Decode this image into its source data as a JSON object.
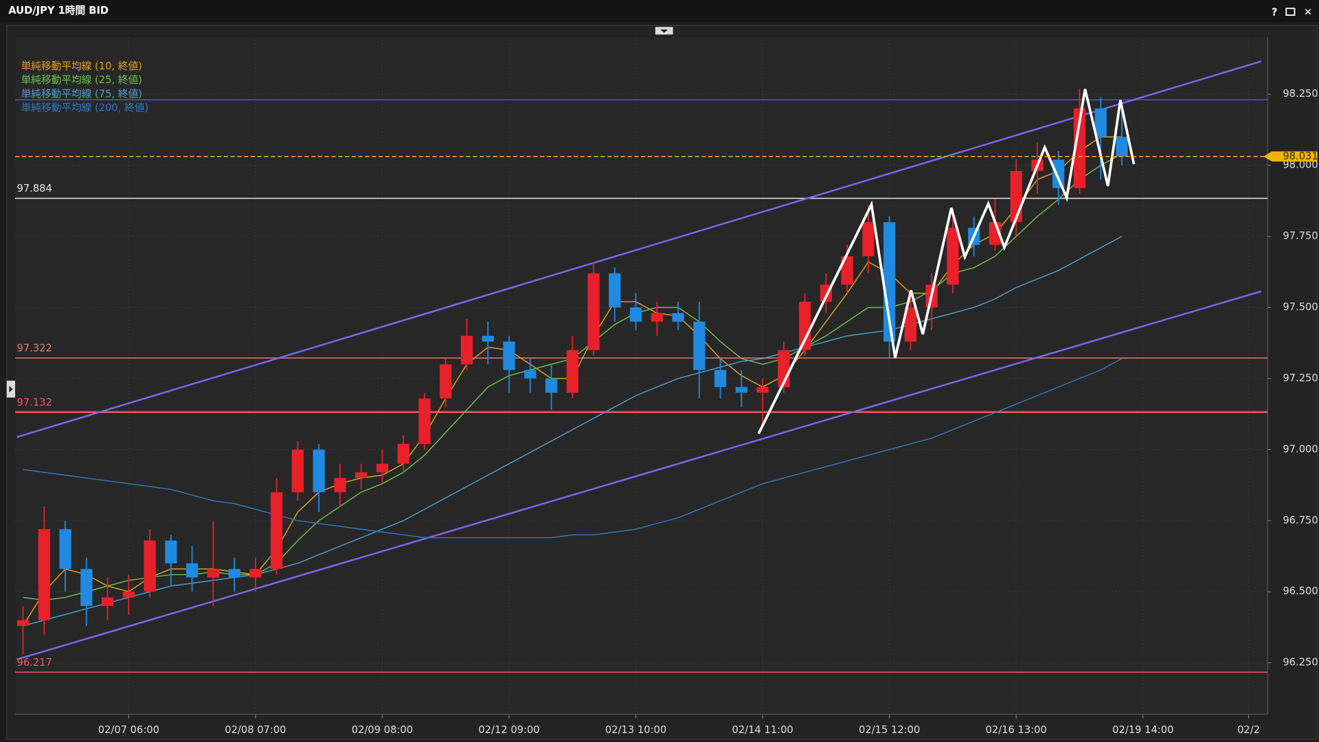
{
  "window": {
    "title": "AUD/JPY 1時間 BID",
    "buttons": [
      "?",
      "✕"
    ]
  },
  "chart_data": {
    "type": "candlestick",
    "categories": [
      null,
      null,
      null,
      null,
      null,
      "02/07 06:00",
      null,
      null,
      null,
      null,
      null,
      "02/08 07:00",
      null,
      null,
      null,
      null,
      null,
      "02/09 08:00",
      null,
      null,
      null,
      null,
      null,
      "02/12 09:00",
      null,
      null,
      null,
      null,
      null,
      "02/13 10:00",
      null,
      null,
      null,
      null,
      null,
      "02/14 11:00",
      null,
      null,
      null,
      null,
      null,
      "02/15 12:00",
      null,
      null,
      null,
      null,
      null,
      "02/16 13:00",
      null,
      null,
      null,
      null,
      null,
      "02/19 14:00",
      null,
      null,
      null,
      null,
      "02/2"
    ],
    "open": [
      96.38,
      96.4,
      96.72,
      96.58,
      96.45,
      96.48,
      96.5,
      96.68,
      96.6,
      96.55,
      96.58,
      96.55,
      96.58,
      96.85,
      97.0,
      96.85,
      96.9,
      96.92,
      96.95,
      97.02,
      97.18,
      97.3,
      97.4,
      97.38,
      97.28,
      97.25,
      97.2,
      97.35,
      97.62,
      97.5,
      97.45,
      97.48,
      97.45,
      97.28,
      97.22,
      97.2,
      97.22,
      97.35,
      97.52,
      97.58,
      97.68,
      97.8,
      97.38,
      97.5,
      97.58,
      97.78,
      97.72,
      97.8,
      97.98,
      98.02,
      97.92,
      98.2,
      98.1,
      null,
      null,
      null,
      null,
      null,
      null
    ],
    "high": [
      96.45,
      96.8,
      96.75,
      96.62,
      96.55,
      96.56,
      96.72,
      96.7,
      96.66,
      96.75,
      96.62,
      96.62,
      96.9,
      97.03,
      97.02,
      96.95,
      96.95,
      97.0,
      97.05,
      97.2,
      97.32,
      97.46,
      97.45,
      97.4,
      97.32,
      97.3,
      97.4,
      97.66,
      97.64,
      97.55,
      97.52,
      97.52,
      97.52,
      97.32,
      97.28,
      97.25,
      97.38,
      97.55,
      97.62,
      97.72,
      97.86,
      97.82,
      97.56,
      97.62,
      97.85,
      97.82,
      97.88,
      98.02,
      98.08,
      98.05,
      98.27,
      98.24,
      98.22,
      null,
      null,
      null,
      null,
      null,
      null
    ],
    "low": [
      96.28,
      96.35,
      96.5,
      96.38,
      96.4,
      96.42,
      96.48,
      96.52,
      96.5,
      96.45,
      96.5,
      96.5,
      96.56,
      96.82,
      96.78,
      96.8,
      96.86,
      96.88,
      96.92,
      97.0,
      97.15,
      97.28,
      97.3,
      97.2,
      97.2,
      97.14,
      97.18,
      97.33,
      97.45,
      97.42,
      97.4,
      97.42,
      97.18,
      97.18,
      97.15,
      97.08,
      97.2,
      97.33,
      97.48,
      97.55,
      97.62,
      97.32,
      97.35,
      97.42,
      97.55,
      97.68,
      97.7,
      97.75,
      97.9,
      97.86,
      97.9,
      97.95,
      98.0,
      null,
      null,
      null,
      null,
      null,
      null
    ],
    "close": [
      96.4,
      96.72,
      96.58,
      96.45,
      96.48,
      96.5,
      96.68,
      96.6,
      96.55,
      96.58,
      96.55,
      96.58,
      96.85,
      97.0,
      96.85,
      96.9,
      96.92,
      96.95,
      97.02,
      97.18,
      97.3,
      97.4,
      97.38,
      97.28,
      97.25,
      97.2,
      97.35,
      97.62,
      97.5,
      97.45,
      97.48,
      97.45,
      97.28,
      97.22,
      97.2,
      97.22,
      97.35,
      97.52,
      97.58,
      97.68,
      97.8,
      97.38,
      97.5,
      97.58,
      97.78,
      97.72,
      97.8,
      97.98,
      98.02,
      97.92,
      98.2,
      98.1,
      98.03,
      null,
      null,
      null,
      null,
      null,
      null
    ],
    "up_color": "#e8202a",
    "down_color": "#1f8ae0",
    "series": [
      {
        "name": "単純移動平均線 (10, 終値)",
        "color": "#e0a020",
        "values": [
          96.38,
          96.5,
          96.58,
          96.56,
          96.52,
          96.5,
          96.55,
          96.58,
          96.58,
          96.58,
          96.57,
          96.56,
          96.65,
          96.78,
          96.85,
          96.88,
          96.9,
          96.91,
          96.95,
          97.05,
          97.18,
          97.3,
          97.36,
          97.35,
          97.3,
          97.25,
          97.25,
          97.4,
          97.52,
          97.52,
          97.48,
          97.47,
          97.4,
          97.32,
          97.26,
          97.22,
          97.26,
          97.35,
          97.45,
          97.55,
          97.66,
          97.62,
          97.55,
          97.55,
          97.65,
          97.72,
          97.76,
          97.85,
          97.95,
          97.98,
          98.05,
          98.1,
          98.1,
          null,
          null,
          null,
          null,
          null,
          null
        ]
      },
      {
        "name": "単純移動平均線 (25, 終値)",
        "color": "#6cc04a",
        "values": [
          96.48,
          96.47,
          96.48,
          96.5,
          96.52,
          96.54,
          96.55,
          96.56,
          96.56,
          96.57,
          96.56,
          96.56,
          96.6,
          96.68,
          96.75,
          96.8,
          96.85,
          96.88,
          96.92,
          96.98,
          97.06,
          97.14,
          97.22,
          97.26,
          97.28,
          97.3,
          97.32,
          97.38,
          97.44,
          97.48,
          97.5,
          97.5,
          97.45,
          97.38,
          97.32,
          97.3,
          97.32,
          97.36,
          97.4,
          97.45,
          97.5,
          97.5,
          97.52,
          97.56,
          97.62,
          97.64,
          97.68,
          97.75,
          97.82,
          97.88,
          97.95,
          98.0,
          98.04,
          null,
          null,
          null,
          null,
          null,
          null
        ]
      },
      {
        "name": "単純移動平均線 (75, 終値)",
        "color": "#4a9fd0",
        "values": [
          96.38,
          96.4,
          96.42,
          96.44,
          96.46,
          96.48,
          96.5,
          96.52,
          96.53,
          96.54,
          96.55,
          96.56,
          96.58,
          96.6,
          96.63,
          96.66,
          96.69,
          96.72,
          96.75,
          96.79,
          96.83,
          96.87,
          96.91,
          96.95,
          96.99,
          97.03,
          97.07,
          97.11,
          97.15,
          97.19,
          97.22,
          97.25,
          97.27,
          97.29,
          97.31,
          97.32,
          97.34,
          97.36,
          97.38,
          97.4,
          97.41,
          97.42,
          97.44,
          97.46,
          97.48,
          97.5,
          97.53,
          97.57,
          97.6,
          97.63,
          97.67,
          97.71,
          97.75,
          null,
          null,
          null,
          null,
          null,
          null
        ]
      },
      {
        "name": "単純移動平均線 (200, 終値)",
        "color": "#2f78c4",
        "values": [
          96.93,
          96.92,
          96.91,
          96.9,
          96.89,
          96.88,
          96.87,
          96.86,
          96.84,
          96.82,
          96.81,
          96.79,
          96.77,
          96.75,
          96.74,
          96.73,
          96.72,
          96.71,
          96.7,
          96.69,
          96.69,
          96.69,
          96.69,
          96.69,
          96.69,
          96.69,
          96.7,
          96.7,
          96.71,
          96.72,
          96.74,
          96.76,
          96.79,
          96.82,
          96.85,
          96.88,
          96.9,
          96.92,
          96.94,
          96.96,
          96.98,
          97.0,
          97.02,
          97.04,
          97.07,
          97.1,
          97.13,
          97.16,
          97.19,
          97.22,
          97.25,
          97.28,
          97.32,
          null,
          null,
          null,
          null,
          null,
          null
        ]
      }
    ],
    "ylim": [
      96.078,
      98.457
    ],
    "yticks": [
      {
        "value": 96.25,
        "label": "96.250"
      },
      {
        "value": 96.5,
        "label": "96.500"
      },
      {
        "value": 96.75,
        "label": "96.750"
      },
      {
        "value": 97,
        "label": "97.000"
      },
      {
        "value": 97.25,
        "label": "97.250"
      },
      {
        "value": 97.5,
        "label": "97.500"
      },
      {
        "value": 97.75,
        "label": "97.750"
      },
      {
        "value": 98,
        "label": "98.000"
      },
      {
        "value": 98.25,
        "label": "98.250"
      }
    ],
    "grid": true,
    "last_price": {
      "value": 98.031,
      "color": "#f0b400"
    },
    "levels": [
      {
        "value": 97.884,
        "color": "#e6e6e6"
      },
      {
        "value": 97.322,
        "color": "#e07a70"
      },
      {
        "value": 97.132,
        "color": "#f05a5a"
      },
      {
        "value": 96.217,
        "color": "#f05a6a"
      }
    ],
    "hlines": [
      {
        "value": 98.23,
        "color": "#5a5ae8"
      }
    ],
    "trendlines": [
      {
        "color": "#7a68f0",
        "x": [
          -0.29,
          58.6
        ],
        "y": [
          97.044,
          98.366
        ]
      },
      {
        "color": "#7a68f0",
        "x": [
          -0.29,
          58.6
        ],
        "y": [
          96.262,
          97.557
        ]
      }
    ],
    "drawings": [
      {
        "color": "#ffffff",
        "x": [
          34.81,
          40.15,
          41.27,
          42.02,
          42.58,
          43.93,
          44.57,
          45.68,
          46.44,
          48.35,
          49.39,
          50.26,
          51.34,
          51.93,
          52.57
        ],
        "y": [
          97.056,
          97.862,
          97.323,
          97.56,
          97.406,
          97.85,
          97.678,
          97.865,
          97.711,
          98.063,
          97.886,
          98.268,
          97.927,
          98.229,
          98.004
        ]
      }
    ]
  }
}
